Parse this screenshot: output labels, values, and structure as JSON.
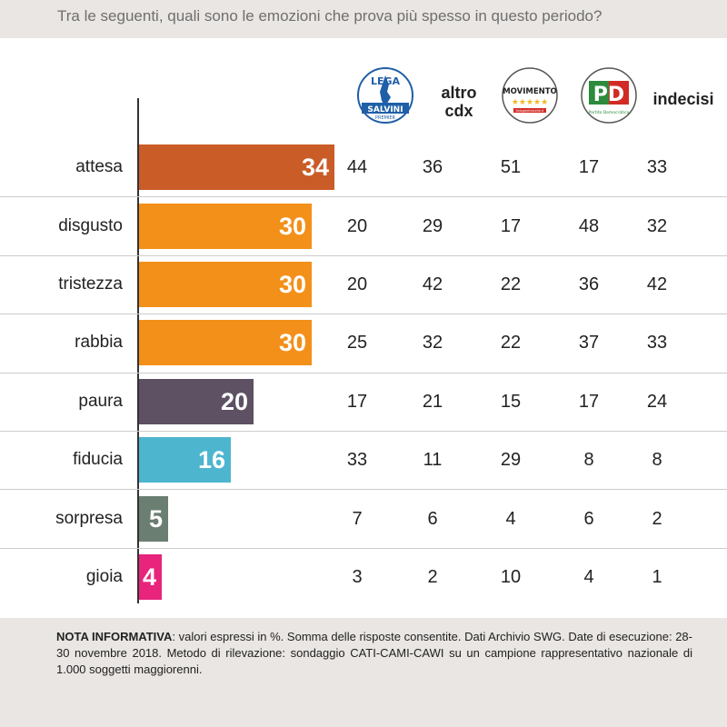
{
  "question": "Tra le seguenti, quali sono le emozioni che prova più spesso in questo periodo?",
  "columns": [
    {
      "id": "lega",
      "label": "Lega Salvini Premier",
      "logo_text_top": "LEGA",
      "logo_text_band": "SALVINI",
      "logo_text_bottom": "PREMIER",
      "color": "#1f5fa8"
    },
    {
      "id": "altro_cdx",
      "label_line1": "altro",
      "label_line2": "cdx"
    },
    {
      "id": "m5s",
      "label": "MoVimento 5 Stelle",
      "logo_text": "MOVIMENTO",
      "logo_text_bottom": "ilblogdellestelle.it",
      "color": "#d22b25"
    },
    {
      "id": "pd",
      "label": "Partito Democratico",
      "logo_text": "PD",
      "logo_text_bottom": "Partito Democratico",
      "color": "#2c8b3c"
    },
    {
      "id": "indecisi",
      "label": "indecisi"
    }
  ],
  "chart_data": {
    "type": "bar",
    "orientation": "horizontal",
    "categories": [
      "attesa",
      "disgusto",
      "tristezza",
      "rabbia",
      "paura",
      "fiducia",
      "sorpresa",
      "gioia"
    ],
    "values": [
      34,
      30,
      30,
      30,
      20,
      16,
      5,
      4
    ],
    "colors": [
      "#c95c27",
      "#f39019",
      "#f39019",
      "#f39019",
      "#5d5163",
      "#4eb5cf",
      "#6b7e72",
      "#e8247c"
    ],
    "xlim": [
      0,
      40
    ],
    "table": {
      "columns": [
        "Lega",
        "altro cdx",
        "M5S",
        "PD",
        "indecisi"
      ],
      "rows": [
        [
          44,
          36,
          51,
          17,
          33
        ],
        [
          20,
          29,
          17,
          48,
          32
        ],
        [
          20,
          42,
          22,
          36,
          42
        ],
        [
          25,
          32,
          22,
          37,
          33
        ],
        [
          17,
          21,
          15,
          17,
          24
        ],
        [
          33,
          11,
          29,
          8,
          8
        ],
        [
          7,
          6,
          4,
          6,
          2
        ],
        [
          3,
          2,
          10,
          4,
          1
        ]
      ]
    }
  },
  "note": {
    "bold": "NOTA INFORMATIVA",
    "text": ": valori espressi in %. Somma delle risposte consentite. Dati Archivio SWG. Date di esecuzione: 28-30 novembre 2018. Metodo di rilevazione: sondaggio CATI-CAMI-CAWI su un campione rappresentativo nazionale di 1.000 soggetti maggiorenni."
  }
}
